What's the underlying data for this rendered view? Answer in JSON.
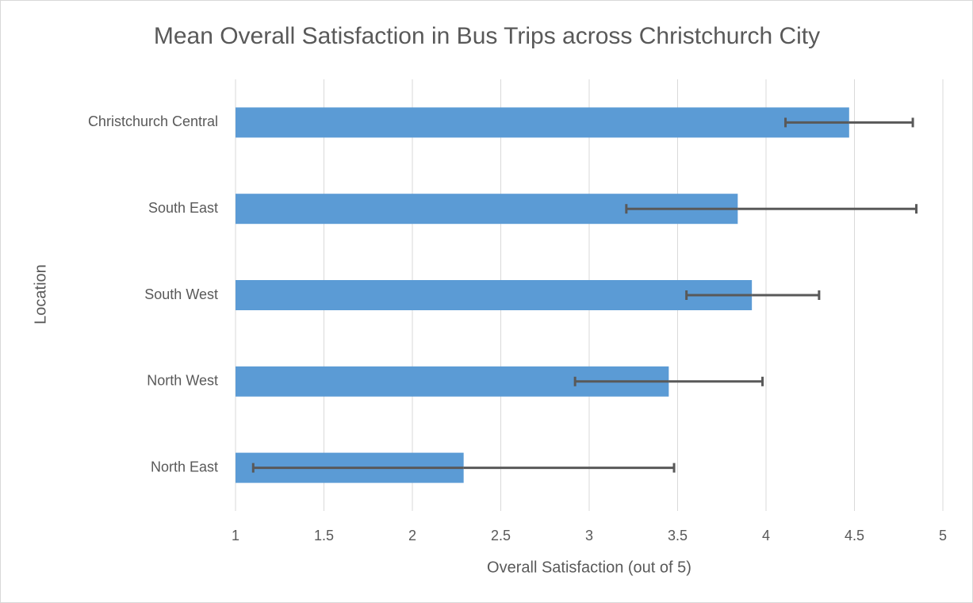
{
  "chart_data": {
    "type": "bar",
    "orientation": "horizontal",
    "title": "Mean Overall Satisfaction in Bus Trips across Christchurch City",
    "x_label": "Overall Satisfaction (out of 5)",
    "y_label": "Location",
    "categories": [
      "Christchurch Central",
      "South East",
      "South West",
      "North West",
      "North East"
    ],
    "values": [
      4.47,
      3.84,
      3.92,
      3.45,
      2.29
    ],
    "error_minus": [
      0.36,
      0.63,
      0.37,
      0.53,
      1.19
    ],
    "error_plus": [
      0.36,
      1.01,
      0.38,
      0.53,
      1.19
    ],
    "color": "#5b9bd5",
    "error_color": "#595959",
    "xlim": [
      1,
      5
    ],
    "xticks": [
      1,
      1.5,
      2,
      2.5,
      3,
      3.5,
      4,
      4.5,
      5
    ],
    "grid": true
  }
}
